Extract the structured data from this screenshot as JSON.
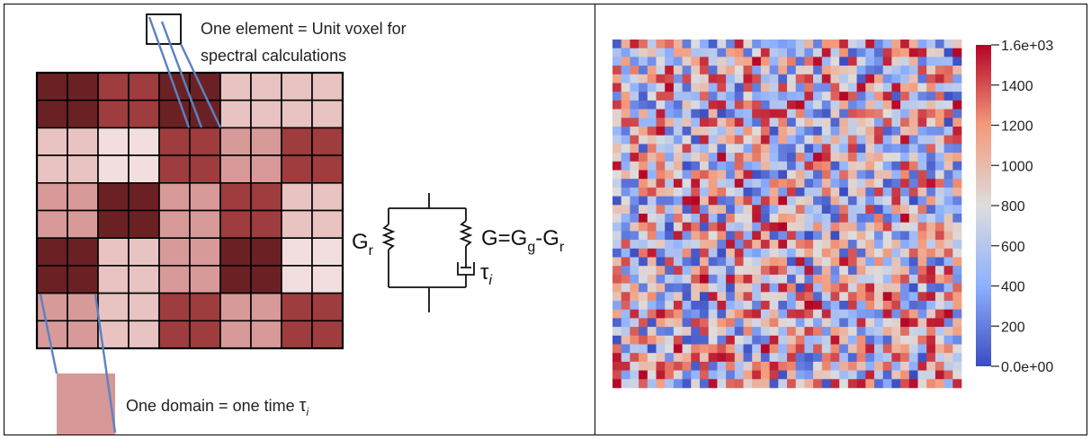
{
  "left_panel": {
    "element_label_line1": "One element = Unit voxel for",
    "element_label_line2": "spectral calculations",
    "domain_label_prefix": "One domain = one time ",
    "domain_label_tau": "τ",
    "domain_label_sub": "i",
    "domain_grid": {
      "rows": 5,
      "cols": 5,
      "palette": {
        "A": "#6b2124",
        "B": "#9e3c3e",
        "C": "#d79a99",
        "D": "#e8c3c2",
        "E": "#f2dede"
      },
      "levels": [
        [
          "A",
          "B",
          "A",
          "D",
          "D"
        ],
        [
          "D",
          "E",
          "B",
          "C",
          "B"
        ],
        [
          "C",
          "A",
          "C",
          "B",
          "D"
        ],
        [
          "A",
          "D",
          "C",
          "A",
          "E"
        ],
        [
          "C",
          "D",
          "B",
          "C",
          "B"
        ]
      ]
    },
    "circuit": {
      "gr_main": "G",
      "gr_sub": "r",
      "g_label_main": "G=G",
      "g_label_sub1": "g",
      "g_label_mid": "-G",
      "g_label_sub2": "r",
      "tau": "τ",
      "tau_sub": "i"
    }
  },
  "chart_data": {
    "type": "heatmap",
    "grid_size": [
      40,
      40
    ],
    "value_range": [
      0,
      1600
    ],
    "colormap": "coolwarm",
    "colorbar": {
      "top_label": "1.6e+03",
      "bottom_label": "0.0e+00",
      "ticks": [
        "1400",
        "1200",
        "1000",
        "800",
        "600",
        "400",
        "200"
      ],
      "tick_values": [
        1400,
        1200,
        1000,
        800,
        600,
        400,
        200
      ]
    },
    "note": ""
  }
}
